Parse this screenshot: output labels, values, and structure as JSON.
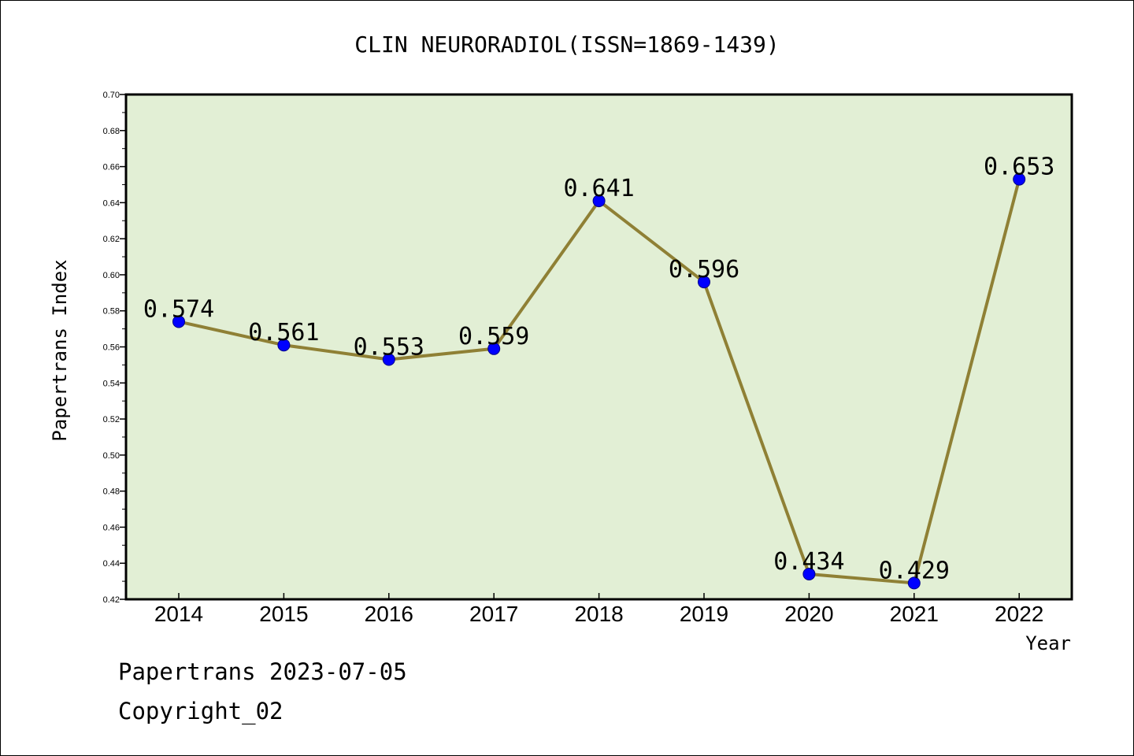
{
  "chart_data": {
    "type": "line",
    "title": "CLIN NEURORADIOL(ISSN=1869-1439)",
    "xlabel": "Year",
    "ylabel": "Papertrans Index",
    "categories": [
      "2014",
      "2015",
      "2016",
      "2017",
      "2018",
      "2019",
      "2020",
      "2021",
      "2022"
    ],
    "series": [
      {
        "values": [
          0.574,
          0.561,
          0.553,
          0.559,
          0.641,
          0.596,
          0.434,
          0.429,
          0.653
        ],
        "labels": [
          "0.574",
          "0.561",
          "0.553",
          "0.559",
          "0.641",
          "0.596",
          "0.434",
          "0.429",
          "0.653"
        ]
      }
    ],
    "ylim": [
      0.42,
      0.7
    ],
    "yticks": [
      "0.42",
      "0.44",
      "0.46",
      "0.48",
      "0.50",
      "0.52",
      "0.54",
      "0.56",
      "0.58",
      "0.60",
      "0.62",
      "0.64",
      "0.66",
      "0.68",
      "0.70"
    ],
    "grid": false,
    "colors": {
      "plot_background": "#e2efd5",
      "line": "#8f8035",
      "marker": "#0000ff"
    }
  },
  "footer": {
    "generated": "Papertrans 2023-07-05",
    "copyright": "Copyright_02"
  }
}
